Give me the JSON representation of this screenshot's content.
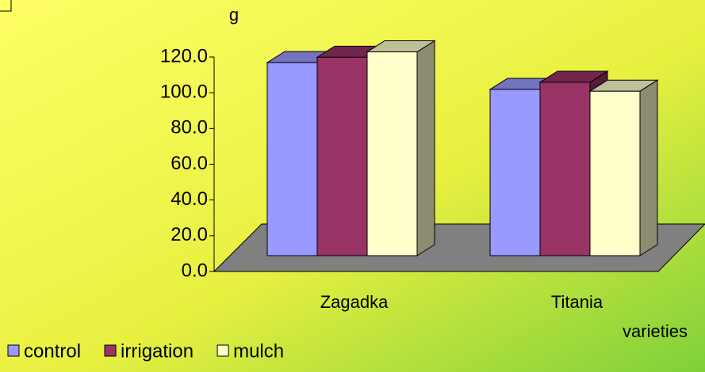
{
  "chart_data": {
    "type": "bar3d",
    "y_label": "g",
    "x_label": "varieties",
    "categories": [
      "Zagadka",
      "Titania"
    ],
    "series": [
      {
        "name": "control",
        "color": "#9999ff",
        "values": [
          108,
          93
        ]
      },
      {
        "name": "irrigation",
        "color": "#993366",
        "values": [
          111,
          97
        ]
      },
      {
        "name": "mulch",
        "color": "#ffffcc",
        "values": [
          114,
          92
        ]
      }
    ],
    "ylim": [
      0,
      120
    ],
    "yticks": [
      {
        "value": 0,
        "label": "0.0"
      },
      {
        "value": 20,
        "label": "20.0"
      },
      {
        "value": 40,
        "label": "40.0"
      },
      {
        "value": 60,
        "label": "60.0"
      },
      {
        "value": 80,
        "label": "80.0"
      },
      {
        "value": 100,
        "label": "100.0"
      },
      {
        "value": 120,
        "label": "120.0"
      }
    ],
    "legend": "bottom-left"
  }
}
